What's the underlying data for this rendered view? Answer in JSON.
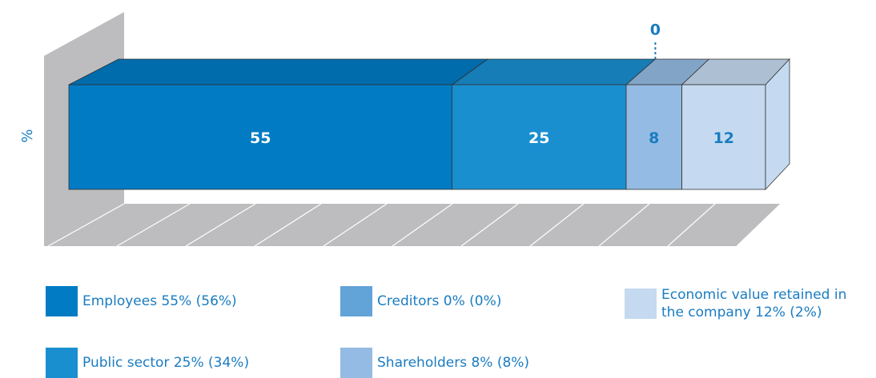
{
  "chart_data": {
    "type": "stacked_bar_3d",
    "y_label": "%",
    "xlim": [
      0,
      100
    ],
    "xticks": [
      0,
      10,
      20,
      30,
      40,
      50,
      60,
      70,
      80,
      90,
      100
    ],
    "grid": true,
    "series": [
      {
        "name": "Employees 55% (56%)",
        "color": "#007bc4",
        "values": [
          55
        ],
        "label_color": "#ffffff"
      },
      {
        "name": "Public sector 25% (34%)",
        "color": "#1a8fd0",
        "values": [
          25
        ],
        "label_color": "#ffffff"
      },
      {
        "name": "Creditors 0% (0%)",
        "color": "#62a3d8",
        "values": [
          0
        ],
        "label_color": "#1a7cc1"
      },
      {
        "name": "Shareholders 8% (8%)",
        "color": "#94bbe3",
        "values": [
          8
        ],
        "label_color": "#1a7cc1"
      },
      {
        "name": "Economic value retained in the company 12% (2%)",
        "color": "#c5daf0",
        "values": [
          12
        ],
        "label_color": "#1a7cc1"
      }
    ]
  }
}
